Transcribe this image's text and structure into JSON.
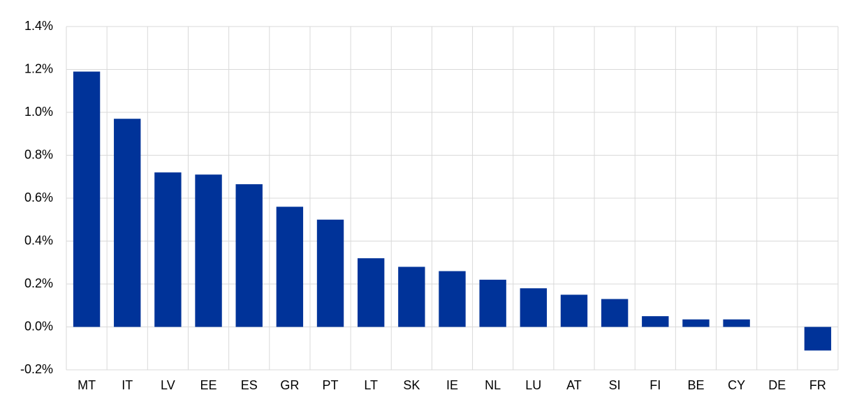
{
  "chart_data": {
    "type": "bar",
    "categories": [
      "MT",
      "IT",
      "LV",
      "EE",
      "ES",
      "GR",
      "PT",
      "LT",
      "SK",
      "IE",
      "NL",
      "LU",
      "AT",
      "SI",
      "FI",
      "BE",
      "CY",
      "DE",
      "FR"
    ],
    "values": [
      1.19,
      0.97,
      0.72,
      0.71,
      0.665,
      0.56,
      0.5,
      0.32,
      0.28,
      0.26,
      0.22,
      0.18,
      0.15,
      0.13,
      0.05,
      0.035,
      0.035,
      0,
      -0.11
    ],
    "color": "#003399",
    "ylim": [
      -0.2,
      1.4
    ],
    "yticks": [
      {
        "value": -0.2,
        "label": "-0.2%"
      },
      {
        "value": 0,
        "label": "0.0%"
      },
      {
        "value": 0.2,
        "label": "0.2%"
      },
      {
        "value": 0.4,
        "label": "0.4%"
      },
      {
        "value": 0.6,
        "label": "0.6%"
      },
      {
        "value": 0.8,
        "label": "0.8%"
      },
      {
        "value": 1.0,
        "label": "1.0%"
      },
      {
        "value": 1.2,
        "label": "1.2%"
      },
      {
        "value": 1.4,
        "label": "1.4%"
      }
    ],
    "grid": true
  }
}
